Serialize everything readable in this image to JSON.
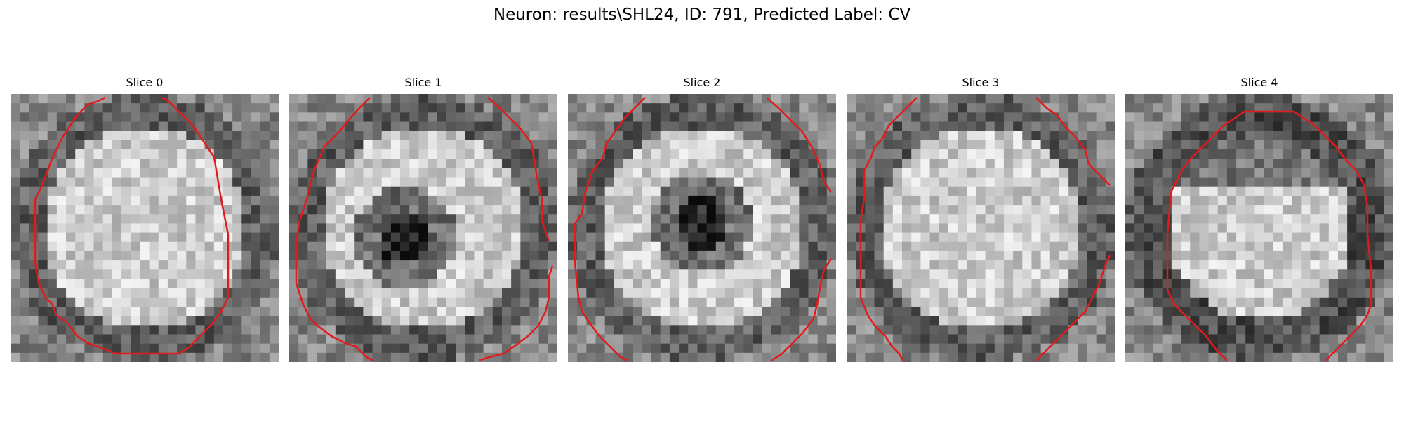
{
  "figure": {
    "title": "Neuron: results\\SHL24, ID: 791, Predicted Label: CV",
    "contour_color": "#e31a1c",
    "colormap": "gray",
    "panels": [
      {
        "label": "Slice 0",
        "pattern": "ring"
      },
      {
        "label": "Slice 1",
        "pattern": "ring-dark-center"
      },
      {
        "label": "Slice 2",
        "pattern": "ring-dark-center"
      },
      {
        "label": "Slice 3",
        "pattern": "ring"
      },
      {
        "label": "Slice 4",
        "pattern": "ring-dark-band"
      }
    ]
  }
}
